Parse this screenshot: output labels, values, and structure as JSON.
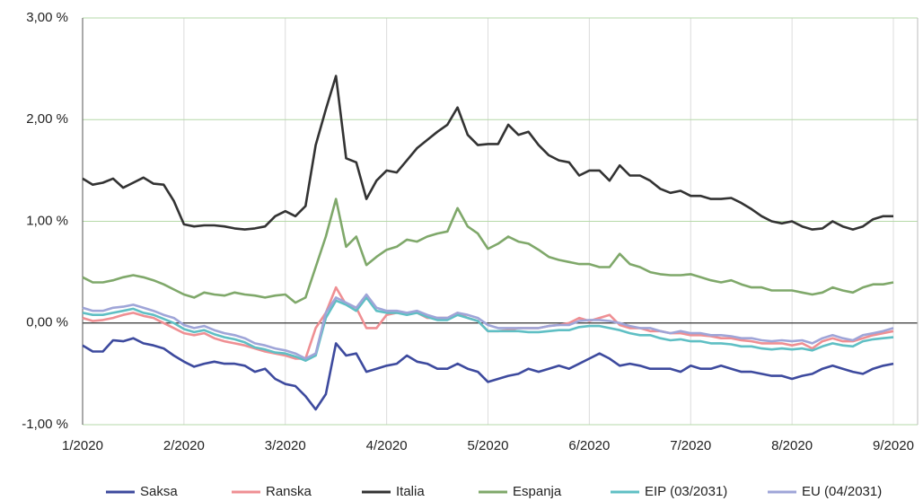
{
  "chart_data": {
    "type": "line",
    "categories": [
      "1/2020",
      null,
      null,
      null,
      null,
      null,
      null,
      null,
      null,
      null,
      "2/2020",
      null,
      null,
      null,
      null,
      null,
      null,
      null,
      null,
      null,
      "3/2020",
      null,
      null,
      null,
      null,
      null,
      null,
      null,
      null,
      null,
      "4/2020",
      null,
      null,
      null,
      null,
      null,
      null,
      null,
      null,
      null,
      "5/2020",
      null,
      null,
      null,
      null,
      null,
      null,
      null,
      null,
      null,
      "6/2020",
      null,
      null,
      null,
      null,
      null,
      null,
      null,
      null,
      null,
      "7/2020",
      null,
      null,
      null,
      null,
      null,
      null,
      null,
      null,
      null,
      "8/2020",
      null,
      null,
      null,
      null,
      null,
      null,
      null,
      null,
      null,
      "9/2020"
    ],
    "series": [
      {
        "name": "Saksa",
        "color": "#3d4a9e",
        "values": [
          -0.22,
          -0.28,
          -0.28,
          -0.17,
          -0.18,
          -0.15,
          -0.2,
          -0.22,
          -0.25,
          -0.32,
          -0.38,
          -0.43,
          -0.4,
          -0.38,
          -0.4,
          -0.4,
          -0.42,
          -0.48,
          -0.45,
          -0.55,
          -0.6,
          -0.62,
          -0.72,
          -0.85,
          -0.7,
          -0.2,
          -0.32,
          -0.3,
          -0.48,
          -0.45,
          -0.42,
          -0.4,
          -0.32,
          -0.38,
          -0.4,
          -0.45,
          -0.45,
          -0.4,
          -0.45,
          -0.48,
          -0.58,
          -0.55,
          -0.52,
          -0.5,
          -0.45,
          -0.48,
          -0.45,
          -0.42,
          -0.45,
          -0.4,
          -0.35,
          -0.3,
          -0.35,
          -0.42,
          -0.4,
          -0.42,
          -0.45,
          -0.45,
          -0.45,
          -0.48,
          -0.42,
          -0.45,
          -0.45,
          -0.42,
          -0.45,
          -0.48,
          -0.48,
          -0.5,
          -0.52,
          -0.52,
          -0.55,
          -0.52,
          -0.5,
          -0.45,
          -0.42,
          -0.45,
          -0.48,
          -0.5,
          -0.45,
          -0.42,
          -0.4
        ]
      },
      {
        "name": "Ranska",
        "color": "#ef8f93",
        "values": [
          0.05,
          0.02,
          0.03,
          0.05,
          0.08,
          0.1,
          0.07,
          0.05,
          0.0,
          -0.05,
          -0.1,
          -0.12,
          -0.1,
          -0.15,
          -0.18,
          -0.2,
          -0.22,
          -0.25,
          -0.28,
          -0.3,
          -0.32,
          -0.35,
          -0.35,
          -0.05,
          0.1,
          0.35,
          0.18,
          0.15,
          -0.05,
          -0.05,
          0.08,
          0.1,
          0.1,
          0.1,
          0.05,
          0.05,
          0.05,
          0.1,
          0.05,
          0.02,
          -0.08,
          -0.08,
          -0.07,
          -0.05,
          -0.05,
          -0.05,
          -0.03,
          -0.02,
          0.0,
          0.05,
          0.02,
          0.05,
          0.08,
          -0.02,
          -0.05,
          -0.05,
          -0.08,
          -0.08,
          -0.1,
          -0.1,
          -0.12,
          -0.12,
          -0.13,
          -0.15,
          -0.15,
          -0.17,
          -0.18,
          -0.2,
          -0.2,
          -0.2,
          -0.22,
          -0.2,
          -0.25,
          -0.18,
          -0.15,
          -0.18,
          -0.18,
          -0.15,
          -0.12,
          -0.1,
          -0.08
        ]
      },
      {
        "name": "Italia",
        "color": "#333333",
        "values": [
          1.42,
          1.36,
          1.38,
          1.42,
          1.33,
          1.38,
          1.43,
          1.37,
          1.36,
          1.2,
          0.97,
          0.95,
          0.96,
          0.96,
          0.95,
          0.93,
          0.92,
          0.93,
          0.95,
          1.05,
          1.1,
          1.05,
          1.15,
          1.75,
          2.1,
          2.43,
          1.62,
          1.58,
          1.22,
          1.4,
          1.5,
          1.48,
          1.6,
          1.72,
          1.8,
          1.88,
          1.95,
          2.12,
          1.85,
          1.75,
          1.76,
          1.76,
          1.95,
          1.85,
          1.88,
          1.75,
          1.65,
          1.6,
          1.58,
          1.45,
          1.5,
          1.5,
          1.4,
          1.55,
          1.45,
          1.45,
          1.4,
          1.32,
          1.28,
          1.3,
          1.25,
          1.25,
          1.22,
          1.22,
          1.23,
          1.18,
          1.12,
          1.05,
          1.0,
          0.98,
          1.0,
          0.95,
          0.92,
          0.93,
          1.0,
          0.95,
          0.92,
          0.95,
          1.02,
          1.05,
          1.05
        ]
      },
      {
        "name": "Espanja",
        "color": "#7fa86a",
        "values": [
          0.45,
          0.4,
          0.4,
          0.42,
          0.45,
          0.47,
          0.45,
          0.42,
          0.38,
          0.33,
          0.28,
          0.25,
          0.3,
          0.28,
          0.27,
          0.3,
          0.28,
          0.27,
          0.25,
          0.27,
          0.28,
          0.2,
          0.25,
          0.55,
          0.85,
          1.22,
          0.75,
          0.85,
          0.57,
          0.65,
          0.72,
          0.75,
          0.82,
          0.8,
          0.85,
          0.88,
          0.9,
          1.13,
          0.95,
          0.88,
          0.73,
          0.78,
          0.85,
          0.8,
          0.78,
          0.72,
          0.65,
          0.62,
          0.6,
          0.58,
          0.58,
          0.55,
          0.55,
          0.68,
          0.58,
          0.55,
          0.5,
          0.48,
          0.47,
          0.47,
          0.48,
          0.45,
          0.42,
          0.4,
          0.42,
          0.38,
          0.35,
          0.35,
          0.32,
          0.32,
          0.32,
          0.3,
          0.28,
          0.3,
          0.35,
          0.32,
          0.3,
          0.35,
          0.38,
          0.38,
          0.4
        ]
      },
      {
        "name": "EIP (03/2031)",
        "color": "#5fbfc4",
        "values": [
          0.1,
          0.08,
          0.08,
          0.1,
          0.12,
          0.14,
          0.1,
          0.08,
          0.04,
          0.0,
          -0.06,
          -0.09,
          -0.07,
          -0.11,
          -0.14,
          -0.16,
          -0.19,
          -0.24,
          -0.26,
          -0.29,
          -0.3,
          -0.33,
          -0.37,
          -0.32,
          0.05,
          0.22,
          0.18,
          0.12,
          0.25,
          0.12,
          0.1,
          0.1,
          0.08,
          0.1,
          0.06,
          0.03,
          0.03,
          0.08,
          0.05,
          0.02,
          -0.08,
          -0.08,
          -0.08,
          -0.08,
          -0.09,
          -0.09,
          -0.08,
          -0.07,
          -0.07,
          -0.04,
          -0.03,
          -0.03,
          -0.05,
          -0.07,
          -0.1,
          -0.12,
          -0.12,
          -0.15,
          -0.17,
          -0.16,
          -0.18,
          -0.18,
          -0.2,
          -0.2,
          -0.21,
          -0.23,
          -0.23,
          -0.25,
          -0.26,
          -0.25,
          -0.26,
          -0.25,
          -0.27,
          -0.23,
          -0.2,
          -0.22,
          -0.23,
          -0.18,
          -0.16,
          -0.15,
          -0.14
        ]
      },
      {
        "name": "EU (04/2031)",
        "color": "#9fa5d8",
        "values": [
          0.15,
          0.12,
          0.12,
          0.15,
          0.16,
          0.18,
          0.15,
          0.12,
          0.08,
          0.05,
          -0.02,
          -0.05,
          -0.03,
          -0.07,
          -0.1,
          -0.12,
          -0.15,
          -0.2,
          -0.22,
          -0.25,
          -0.27,
          -0.3,
          -0.35,
          -0.3,
          0.1,
          0.25,
          0.2,
          0.15,
          0.28,
          0.15,
          0.12,
          0.12,
          0.1,
          0.12,
          0.08,
          0.05,
          0.05,
          0.1,
          0.08,
          0.05,
          -0.02,
          -0.05,
          -0.05,
          -0.05,
          -0.05,
          -0.05,
          -0.03,
          -0.02,
          -0.02,
          0.02,
          0.03,
          0.03,
          0.02,
          0.0,
          -0.03,
          -0.05,
          -0.05,
          -0.08,
          -0.1,
          -0.08,
          -0.1,
          -0.1,
          -0.12,
          -0.12,
          -0.13,
          -0.15,
          -0.15,
          -0.17,
          -0.18,
          -0.17,
          -0.18,
          -0.17,
          -0.2,
          -0.15,
          -0.12,
          -0.15,
          -0.17,
          -0.12,
          -0.1,
          -0.08,
          -0.05
        ]
      }
    ],
    "ylim": [
      -1,
      3
    ],
    "yticks": [
      {
        "value": -1,
        "label": "-1,00 %"
      },
      {
        "value": 0,
        "label": "0,00 %"
      },
      {
        "value": 1,
        "label": "1,00 %"
      },
      {
        "value": 2,
        "label": "2,00 %"
      },
      {
        "value": 3,
        "label": "3,00 %"
      }
    ],
    "grid": true,
    "legend": "bottom"
  }
}
